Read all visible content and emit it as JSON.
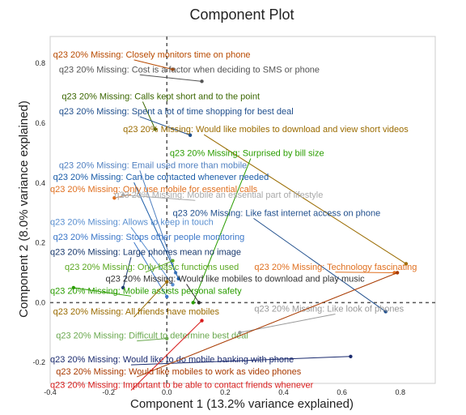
{
  "chart_data": {
    "type": "scatter",
    "title": "Component Plot",
    "xlabel": "Component 1 (13.2% variance explained)",
    "ylabel": "Component 2 (8.0% variance explained)",
    "xlim": [
      -0.4,
      0.92
    ],
    "ylim": [
      -0.27,
      0.89
    ],
    "xticks": [
      "-0.4",
      "-0.2",
      "0.0",
      "0.2",
      "0.4",
      "0.6",
      "0.8"
    ],
    "yticks": [
      "-0.2",
      "0.0",
      "0.2",
      "0.4",
      "0.6",
      "0.8"
    ],
    "reference_lines": "dashed lines at x=0 and y=0",
    "points": [
      {
        "label": "q23 20% Missing: Closely monitors time on phone",
        "x": 0.02,
        "y": 0.78,
        "label_x": -0.39,
        "label_y": 0.82,
        "color": "#b84a00"
      },
      {
        "label": "q23 20% Missing: Cost is a factor when deciding to SMS or phone",
        "x": 0.12,
        "y": 0.74,
        "label_x": -0.37,
        "label_y": 0.77,
        "color": "#555555"
      },
      {
        "label": "q23 20% Missing: Calls kept short and to the point",
        "x": -0.04,
        "y": 0.58,
        "label_x": -0.36,
        "label_y": 0.68,
        "color": "#3a6600"
      },
      {
        "label": "q23 20% Missing: Spent a lot of time shopping for best deal",
        "x": 0.08,
        "y": 0.56,
        "label_x": -0.37,
        "label_y": 0.63,
        "color": "#1f4e8c"
      },
      {
        "label": "q23 20% Missing: Would like mobiles to download and view short videos",
        "x": 0.82,
        "y": 0.13,
        "label_x": -0.15,
        "label_y": 0.57,
        "color": "#9a6b00"
      },
      {
        "label": "q23 20% Missing: Surprised by bill size",
        "x": 0.09,
        "y": 0.0,
        "label_x": 0.01,
        "label_y": 0.49,
        "color": "#2a9d00"
      },
      {
        "label": "q23 20% Missing: Email used more than mobile",
        "x": 0.03,
        "y": 0.1,
        "label_x": -0.37,
        "label_y": 0.45,
        "color": "#4f7fc0"
      },
      {
        "label": "q23 20% Missing: Can be contacted whenever needed",
        "x": 0.04,
        "y": 0.08,
        "label_x": -0.39,
        "label_y": 0.41,
        "color": "#1a5ca8"
      },
      {
        "label": "q23 20% Missing: Only use mobile for essential calls",
        "x": -0.18,
        "y": 0.35,
        "label_x": -0.4,
        "label_y": 0.37,
        "color": "#e07020"
      },
      {
        "label": "q23 20% Missing: Mobile an essential part of lifestyle",
        "x": -0.15,
        "y": 0.36,
        "label_x": -0.18,
        "label_y": 0.35,
        "color": "#aaaaaa"
      },
      {
        "label": "q23 20% Missing: Like fast internet access on phone",
        "x": 0.75,
        "y": -0.03,
        "label_x": 0.02,
        "label_y": 0.29,
        "color": "#1f4e8c"
      },
      {
        "label": "q23 20% Missing: Allows to keep in touch",
        "x": 0.02,
        "y": 0.06,
        "label_x": -0.4,
        "label_y": 0.26,
        "color": "#5a8fd0"
      },
      {
        "label": "q23 20% Missing: Stops other people monitoring",
        "x": 0.0,
        "y": 0.02,
        "label_x": -0.39,
        "label_y": 0.21,
        "color": "#3a76c8"
      },
      {
        "label": "q23 20% Missing: Large phones mean no image",
        "x": -0.15,
        "y": 0.05,
        "label_x": -0.4,
        "label_y": 0.16,
        "color": "#1a3a6e"
      },
      {
        "label": "q23 20% Missing: Only basic functions used",
        "x": 0.02,
        "y": 0.14,
        "label_x": -0.35,
        "label_y": 0.11,
        "color": "#5aa820"
      },
      {
        "label": "q23 20% Missing: Technology fascinating",
        "x": 0.78,
        "y": 0.1,
        "label_x": 0.3,
        "label_y": 0.11,
        "color": "#e07020"
      },
      {
        "label": "q23 20% Missing: Would like mobiles to download and play music",
        "x": 0.11,
        "y": 0.0,
        "label_x": -0.21,
        "label_y": 0.07,
        "color": "#333333"
      },
      {
        "label": "q23 20% Missing: Mobile assists personal safety",
        "x": -0.32,
        "y": 0.05,
        "label_x": -0.4,
        "label_y": 0.03,
        "color": "#2a9d00"
      },
      {
        "label": "q23 20% Missing: All friends have mobiles",
        "x": 0.0,
        "y": 0.07,
        "label_x": -0.39,
        "label_y": -0.04,
        "color": "#9a6b00"
      },
      {
        "label": "q23 20% Missing: Like look of phones",
        "x": 0.25,
        "y": -0.1,
        "label_x": 0.3,
        "label_y": -0.03,
        "color": "#999999"
      },
      {
        "label": "q23 20% Missing: Difficult to determine best deal",
        "x": 0.0,
        "y": -0.12,
        "label_x": -0.38,
        "label_y": -0.12,
        "color": "#6aa84f"
      },
      {
        "label": "q23 20% Missing: Would like to do mobile banking with phone",
        "x": 0.63,
        "y": -0.18,
        "label_x": -0.4,
        "label_y": -0.2,
        "color": "#1a2a6e"
      },
      {
        "label": "q23 20% Missing: Would like mobiles to work as video phones",
        "x": 0.79,
        "y": 0.1,
        "label_x": -0.38,
        "label_y": -0.24,
        "color": "#a83a00"
      },
      {
        "label": "q23 20% Missing: Important to be able to contact friends whenever",
        "x": 0.12,
        "y": -0.06,
        "label_x": -0.4,
        "label_y": -0.285,
        "color": "#d81b1b"
      }
    ]
  }
}
